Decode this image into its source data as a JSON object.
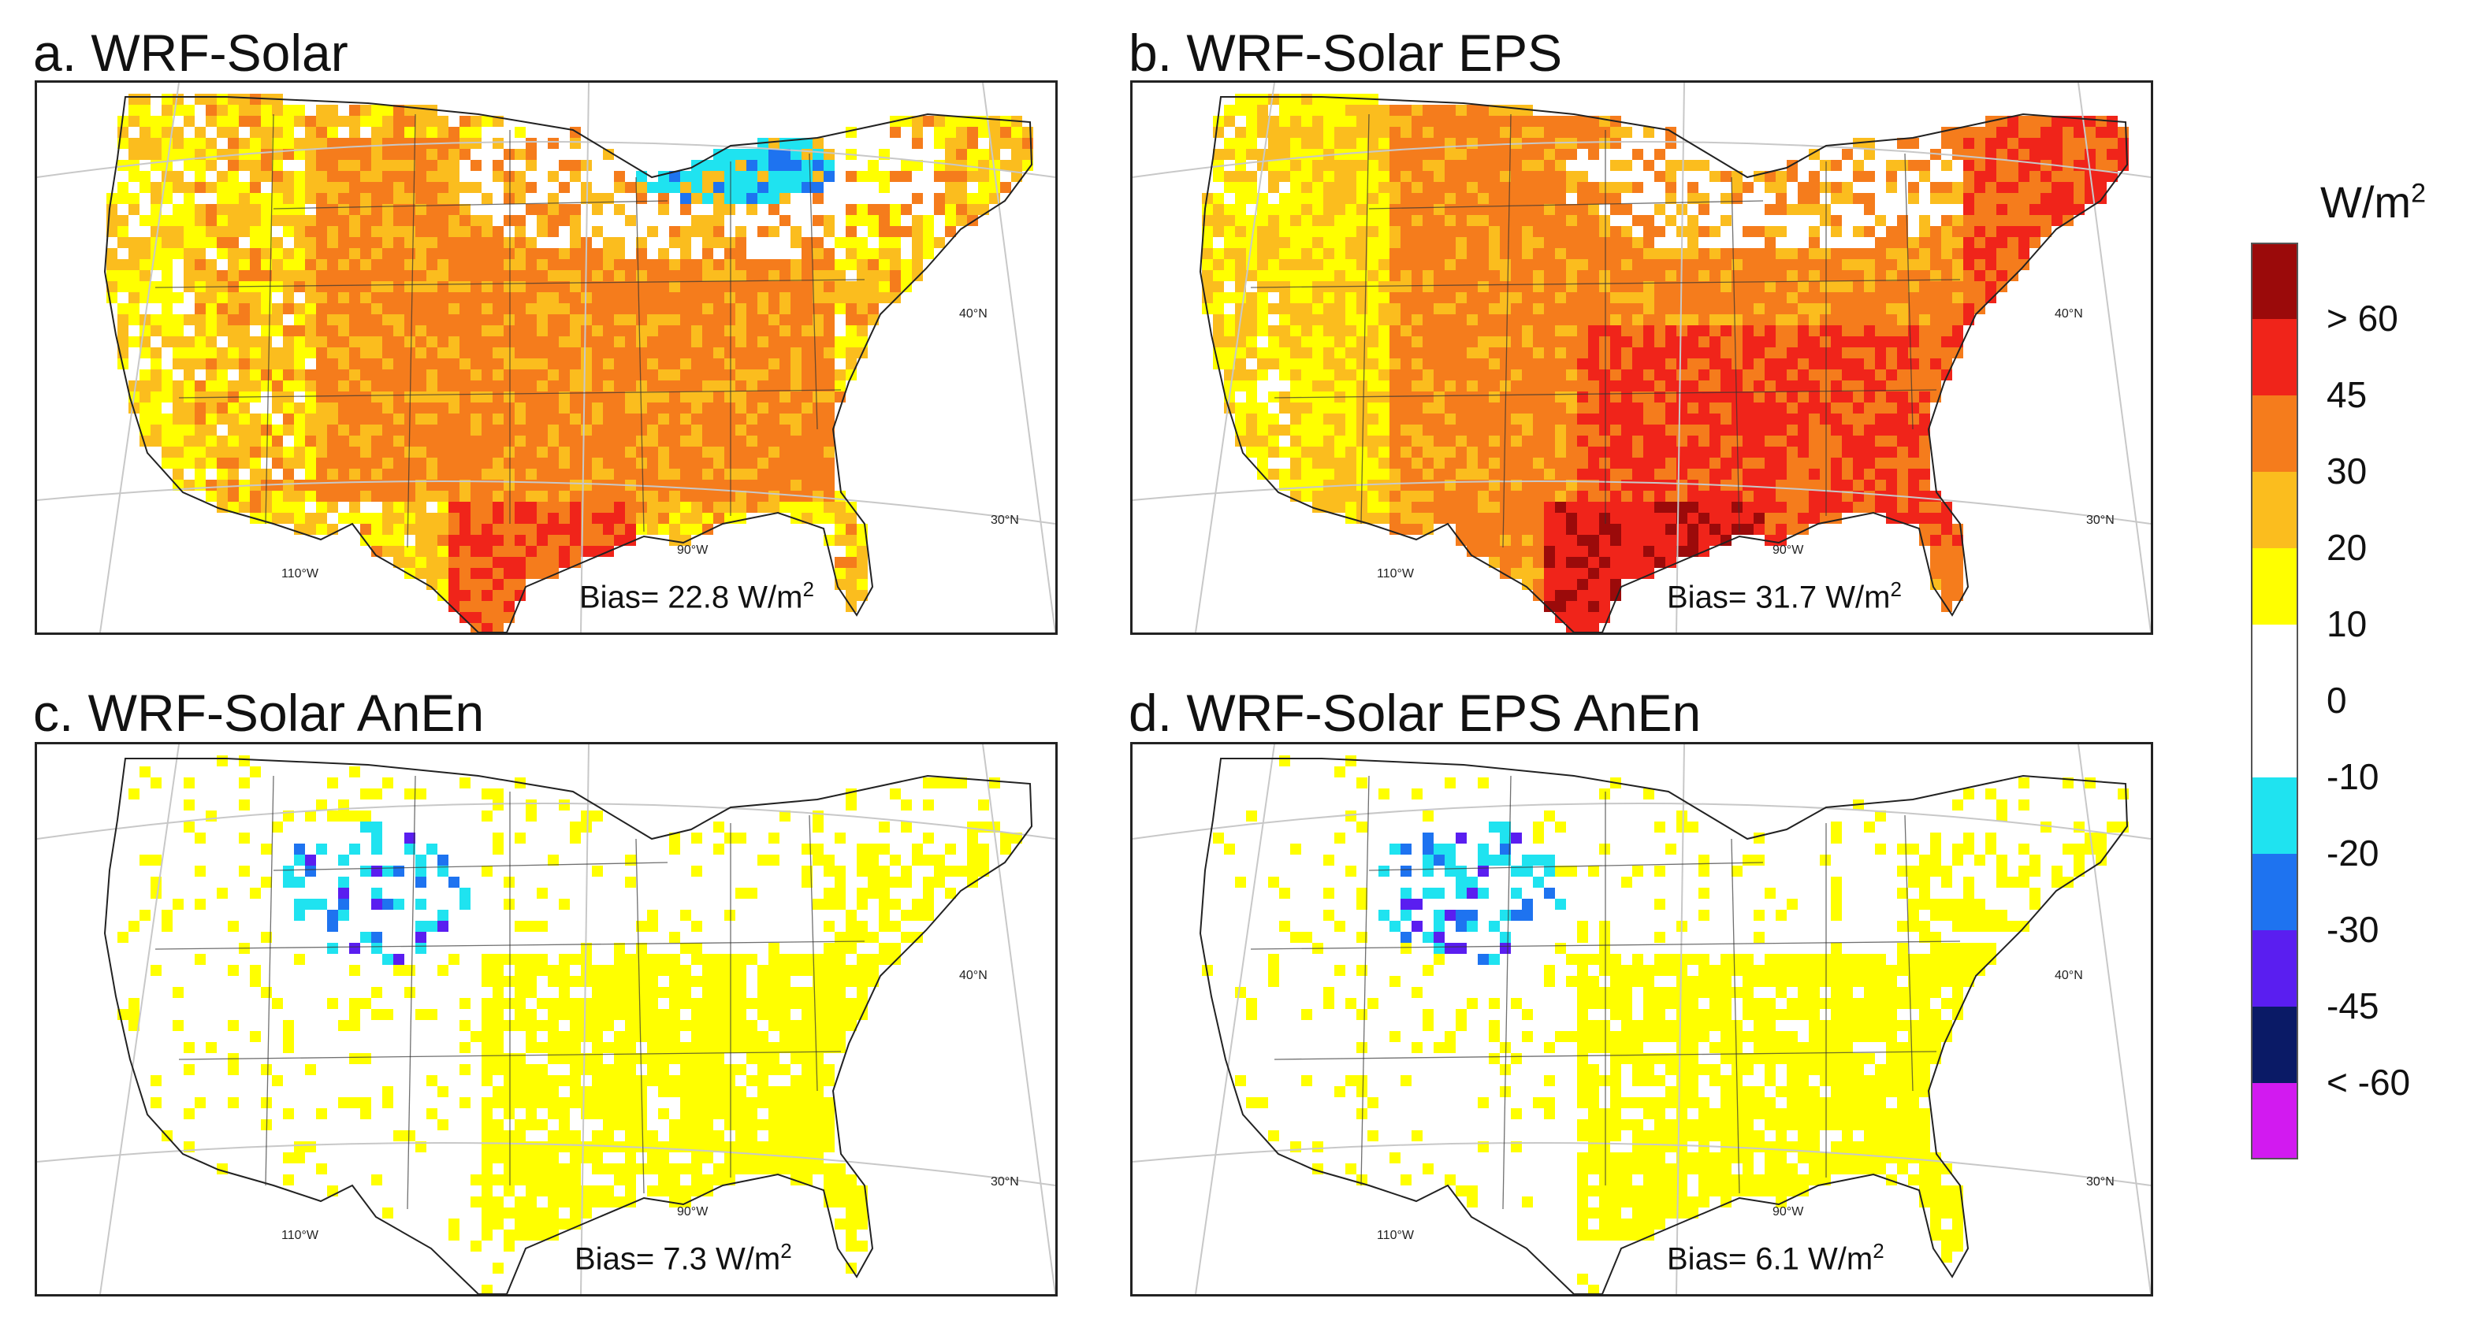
{
  "panels": [
    {
      "id": "a",
      "title": "a. WRF-Solar",
      "bias_text": "Bias= 22.8 W/m",
      "bias_sup": "2",
      "field": "high"
    },
    {
      "id": "b",
      "title": "b. WRF-Solar EPS",
      "bias_text": "Bias= 31.7 W/m",
      "bias_sup": "2",
      "field": "veryhigh"
    },
    {
      "id": "c",
      "title": "c. WRF-Solar AnEn",
      "bias_text": "Bias=  7.3 W/m",
      "bias_sup": "2",
      "field": "low"
    },
    {
      "id": "d",
      "title": "d. WRF-Solar EPS AnEn",
      "bias_text": "Bias=  6.1 W/m",
      "bias_sup": "2",
      "field": "low"
    }
  ],
  "grid_labels": {
    "lat40": "40°N",
    "lat30": "30°N",
    "lon90": "90°W",
    "lon110": "110°W"
  },
  "colorbar": {
    "title": "W/m",
    "title_sup": "2",
    "colors": [
      "#9b0a0a",
      "#f0241a",
      "#f57c1c",
      "#fbbd1e",
      "#ffff00",
      "#ffffff",
      "#ffffff",
      "#1fe3f0",
      "#1e73f0",
      "#5a1ef0",
      "#0a1a66",
      "#d21af0"
    ],
    "labels": [
      "> 60",
      "45",
      "30",
      "20",
      "10",
      "0",
      "-10",
      "-20",
      "-30",
      "-45",
      "< -60"
    ]
  }
}
